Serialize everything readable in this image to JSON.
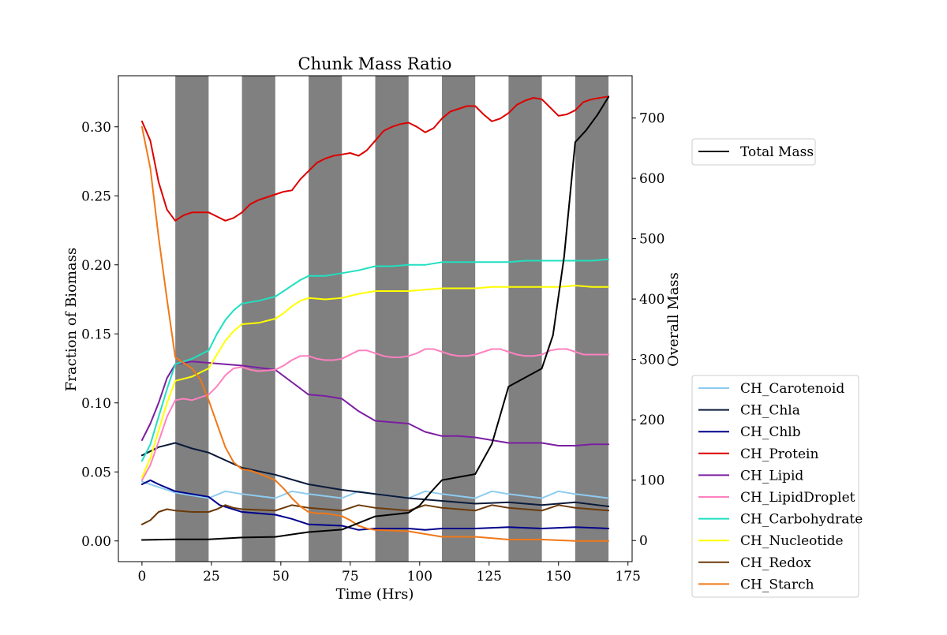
{
  "chart_data": {
    "type": "line",
    "title": "Chunk Mass Ratio",
    "xlabel": "Time (Hrs)",
    "ylabel": "Fraction of Biomass",
    "y2label": "Overall Mass",
    "xlim": [
      -8.5,
      176.5
    ],
    "ylim": [
      -0.015,
      0.337
    ],
    "y2lim": [
      -35,
      770
    ],
    "xticks": [
      0,
      25,
      50,
      75,
      100,
      125,
      150,
      175
    ],
    "yticks": [
      0.0,
      0.05,
      0.1,
      0.15,
      0.2,
      0.25,
      0.3
    ],
    "ytick_labels": [
      "0.00",
      "0.05",
      "0.10",
      "0.15",
      "0.20",
      "0.25",
      "0.30"
    ],
    "y2ticks": [
      0,
      100,
      200,
      300,
      400,
      500,
      600,
      700
    ],
    "y2tick_labels": [
      "0",
      "100",
      "200",
      "300",
      "400",
      "500",
      "600",
      "700"
    ],
    "xtick_labels": [
      "0",
      "25",
      "50",
      "75",
      "100",
      "125",
      "150",
      "175"
    ],
    "dark_periods": [
      [
        12,
        24
      ],
      [
        36,
        48
      ],
      [
        60,
        72
      ],
      [
        84,
        96
      ],
      [
        108,
        120
      ],
      [
        132,
        144
      ],
      [
        156,
        168
      ]
    ],
    "dark_color": "#808080",
    "grid": false,
    "legend_right_axis": {
      "placement": "upper right outside",
      "entries": [
        "Total Mass"
      ]
    },
    "legend_left_axis": {
      "placement": "lower right outside"
    },
    "right_series": [
      {
        "name": "Total Mass",
        "color": "#000000",
        "x": [
          0,
          12,
          24,
          36,
          48,
          60,
          72,
          84,
          96,
          100,
          104,
          108,
          120,
          126,
          132,
          144,
          148,
          152,
          156,
          160,
          164,
          168
        ],
        "y": [
          1,
          2,
          2,
          5,
          6,
          14,
          18,
          40,
          46,
          58,
          80,
          100,
          110,
          160,
          255,
          285,
          340,
          470,
          660,
          680,
          705,
          735
        ]
      }
    ],
    "series": [
      {
        "name": "CH_Carotenoid",
        "color": "#8ecbf0",
        "x": [
          0,
          12,
          24,
          30,
          36,
          48,
          54,
          60,
          72,
          78,
          84,
          96,
          102,
          108,
          120,
          126,
          132,
          144,
          150,
          156,
          168
        ],
        "y": [
          0.043,
          0.035,
          0.031,
          0.036,
          0.034,
          0.031,
          0.036,
          0.034,
          0.031,
          0.036,
          0.034,
          0.031,
          0.036,
          0.034,
          0.031,
          0.036,
          0.034,
          0.031,
          0.036,
          0.034,
          0.031
        ]
      },
      {
        "name": "CH_Chla",
        "color": "#0a1a3a",
        "x": [
          0,
          6,
          12,
          18,
          24,
          36,
          48,
          60,
          72,
          84,
          96,
          108,
          120,
          132,
          144,
          156,
          168
        ],
        "y": [
          0.062,
          0.068,
          0.071,
          0.067,
          0.064,
          0.053,
          0.048,
          0.041,
          0.037,
          0.034,
          0.031,
          0.029,
          0.027,
          0.028,
          0.026,
          0.028,
          0.025
        ]
      },
      {
        "name": "CH_Chlb",
        "color": "#00008b",
        "x": [
          0,
          3,
          6,
          12,
          24,
          28,
          36,
          48,
          54,
          60,
          72,
          78,
          84,
          96,
          102,
          108,
          120,
          132,
          144,
          156,
          168
        ],
        "y": [
          0.041,
          0.044,
          0.041,
          0.036,
          0.032,
          0.026,
          0.021,
          0.019,
          0.016,
          0.012,
          0.011,
          0.008,
          0.009,
          0.009,
          0.008,
          0.009,
          0.009,
          0.01,
          0.009,
          0.01,
          0.009
        ]
      },
      {
        "name": "CH_Protein",
        "color": "#dd0000",
        "x": [
          0,
          3,
          6,
          9,
          12,
          15,
          18,
          24,
          27,
          30,
          33,
          36,
          39,
          42,
          48,
          51,
          54,
          57,
          60,
          63,
          66,
          69,
          72,
          75,
          78,
          81,
          84,
          87,
          90,
          93,
          96,
          99,
          102,
          105,
          108,
          111,
          114,
          117,
          120,
          123,
          126,
          129,
          132,
          135,
          138,
          141,
          144,
          147,
          150,
          153,
          156,
          159,
          162,
          165,
          168
        ],
        "y": [
          0.304,
          0.29,
          0.26,
          0.24,
          0.232,
          0.236,
          0.238,
          0.238,
          0.235,
          0.232,
          0.234,
          0.238,
          0.244,
          0.247,
          0.251,
          0.253,
          0.254,
          0.262,
          0.268,
          0.274,
          0.277,
          0.279,
          0.28,
          0.281,
          0.279,
          0.283,
          0.29,
          0.297,
          0.3,
          0.302,
          0.303,
          0.3,
          0.296,
          0.299,
          0.306,
          0.311,
          0.313,
          0.315,
          0.315,
          0.309,
          0.304,
          0.306,
          0.31,
          0.316,
          0.319,
          0.321,
          0.32,
          0.314,
          0.308,
          0.309,
          0.312,
          0.318,
          0.32,
          0.321,
          0.322
        ]
      },
      {
        "name": "CH_Lipid",
        "color": "#7b1fa2",
        "x": [
          0,
          3,
          6,
          9,
          12,
          18,
          24,
          36,
          48,
          54,
          60,
          66,
          72,
          78,
          84,
          90,
          96,
          102,
          108,
          114,
          120,
          126,
          132,
          138,
          144,
          150,
          156,
          162,
          168
        ],
        "y": [
          0.073,
          0.085,
          0.1,
          0.118,
          0.128,
          0.13,
          0.129,
          0.127,
          0.124,
          0.115,
          0.106,
          0.105,
          0.103,
          0.094,
          0.087,
          0.086,
          0.085,
          0.079,
          0.076,
          0.076,
          0.075,
          0.073,
          0.071,
          0.071,
          0.071,
          0.069,
          0.069,
          0.07,
          0.07
        ]
      },
      {
        "name": "CH_LipidDroplet",
        "color": "#ff80c0",
        "x": [
          0,
          3,
          6,
          9,
          12,
          15,
          18,
          24,
          27,
          30,
          33,
          36,
          39,
          42,
          48,
          51,
          54,
          57,
          60,
          63,
          66,
          69,
          72,
          75,
          78,
          81,
          84,
          87,
          90,
          93,
          96,
          99,
          102,
          105,
          108,
          111,
          114,
          117,
          120,
          123,
          126,
          129,
          132,
          135,
          138,
          141,
          144,
          147,
          150,
          153,
          156,
          159,
          162,
          165,
          168
        ],
        "y": [
          0.044,
          0.055,
          0.072,
          0.09,
          0.102,
          0.103,
          0.102,
          0.106,
          0.112,
          0.12,
          0.125,
          0.126,
          0.124,
          0.123,
          0.124,
          0.127,
          0.131,
          0.134,
          0.134,
          0.132,
          0.131,
          0.131,
          0.132,
          0.135,
          0.138,
          0.138,
          0.136,
          0.134,
          0.133,
          0.133,
          0.134,
          0.136,
          0.139,
          0.139,
          0.137,
          0.135,
          0.134,
          0.134,
          0.135,
          0.137,
          0.139,
          0.139,
          0.137,
          0.135,
          0.134,
          0.134,
          0.135,
          0.138,
          0.139,
          0.139,
          0.137,
          0.135,
          0.135,
          0.135,
          0.135
        ]
      },
      {
        "name": "CH_Carbohydrate",
        "color": "#20e0c0",
        "x": [
          0,
          3,
          6,
          9,
          12,
          18,
          24,
          27,
          30,
          33,
          36,
          42,
          48,
          51,
          54,
          57,
          60,
          66,
          72,
          78,
          84,
          90,
          96,
          102,
          108,
          114,
          120,
          126,
          132,
          138,
          144,
          150,
          156,
          162,
          168
        ],
        "y": [
          0.058,
          0.07,
          0.09,
          0.11,
          0.128,
          0.132,
          0.138,
          0.15,
          0.16,
          0.167,
          0.172,
          0.174,
          0.177,
          0.181,
          0.185,
          0.189,
          0.192,
          0.192,
          0.194,
          0.196,
          0.199,
          0.199,
          0.2,
          0.2,
          0.202,
          0.202,
          0.202,
          0.202,
          0.202,
          0.203,
          0.203,
          0.203,
          0.203,
          0.203,
          0.204
        ]
      },
      {
        "name": "CH_Nucleotide",
        "color": "#ffff00",
        "x": [
          0,
          3,
          6,
          9,
          12,
          18,
          24,
          27,
          30,
          33,
          36,
          42,
          48,
          51,
          54,
          57,
          60,
          66,
          72,
          78,
          84,
          90,
          96,
          102,
          108,
          114,
          120,
          126,
          132,
          138,
          144,
          150,
          156,
          162,
          168
        ],
        "y": [
          0.046,
          0.06,
          0.08,
          0.1,
          0.116,
          0.119,
          0.125,
          0.135,
          0.145,
          0.152,
          0.157,
          0.158,
          0.161,
          0.165,
          0.17,
          0.174,
          0.176,
          0.175,
          0.176,
          0.179,
          0.181,
          0.181,
          0.181,
          0.182,
          0.183,
          0.183,
          0.183,
          0.184,
          0.184,
          0.184,
          0.184,
          0.184,
          0.185,
          0.184,
          0.184
        ]
      },
      {
        "name": "CH_Redox",
        "color": "#6b3a0a",
        "x": [
          0,
          3,
          6,
          9,
          12,
          18,
          24,
          27,
          30,
          33,
          36,
          48,
          54,
          60,
          72,
          78,
          84,
          96,
          102,
          108,
          120,
          126,
          132,
          144,
          150,
          156,
          168
        ],
        "y": [
          0.012,
          0.015,
          0.021,
          0.023,
          0.022,
          0.021,
          0.021,
          0.023,
          0.026,
          0.024,
          0.023,
          0.022,
          0.026,
          0.024,
          0.022,
          0.026,
          0.024,
          0.022,
          0.026,
          0.024,
          0.022,
          0.026,
          0.024,
          0.022,
          0.026,
          0.024,
          0.022
        ]
      },
      {
        "name": "CH_Starch",
        "color": "#f07818",
        "x": [
          0,
          3,
          6,
          9,
          12,
          15,
          18,
          21,
          24,
          27,
          30,
          33,
          36,
          39,
          42,
          48,
          51,
          54,
          57,
          60,
          63,
          66,
          72,
          75,
          78,
          81,
          84,
          96,
          102,
          108,
          120,
          132,
          144,
          156,
          168
        ],
        "y": [
          0.3,
          0.27,
          0.22,
          0.175,
          0.133,
          0.129,
          0.125,
          0.117,
          0.102,
          0.085,
          0.068,
          0.057,
          0.052,
          0.051,
          0.049,
          0.044,
          0.038,
          0.031,
          0.025,
          0.021,
          0.02,
          0.02,
          0.018,
          0.015,
          0.011,
          0.009,
          0.008,
          0.007,
          0.005,
          0.003,
          0.003,
          0.001,
          0.001,
          0.0,
          0.0
        ]
      }
    ]
  }
}
